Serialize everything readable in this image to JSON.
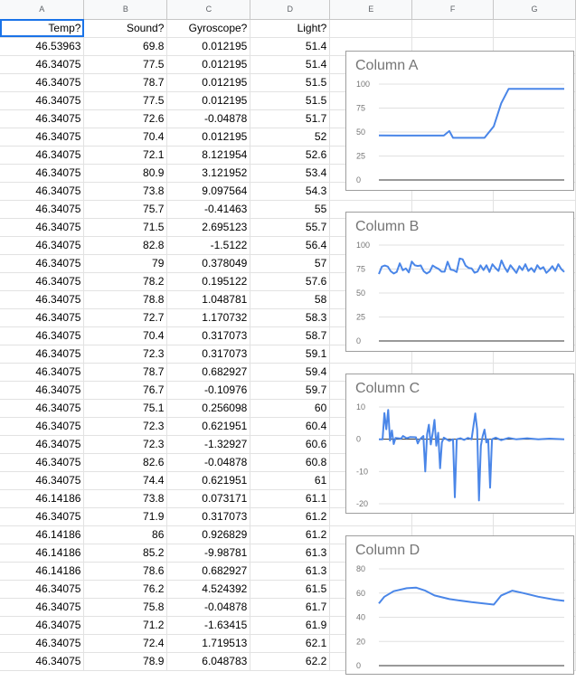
{
  "columns": [
    "A",
    "B",
    "C",
    "D",
    "E",
    "F",
    "G"
  ],
  "header_row": [
    "Temp?",
    "Sound?",
    "Gyroscope?",
    "Light?"
  ],
  "rows": [
    [
      "46.53963",
      "69.8",
      "0.012195",
      "51.4"
    ],
    [
      "46.34075",
      "77.5",
      "0.012195",
      "51.4"
    ],
    [
      "46.34075",
      "78.7",
      "0.012195",
      "51.5"
    ],
    [
      "46.34075",
      "77.5",
      "0.012195",
      "51.5"
    ],
    [
      "46.34075",
      "72.6",
      "-0.04878",
      "51.7"
    ],
    [
      "46.34075",
      "70.4",
      "0.012195",
      "52"
    ],
    [
      "46.34075",
      "72.1",
      "8.121954",
      "52.6"
    ],
    [
      "46.34075",
      "80.9",
      "3.121952",
      "53.4"
    ],
    [
      "46.34075",
      "73.8",
      "9.097564",
      "54.3"
    ],
    [
      "46.34075",
      "75.7",
      "-0.41463",
      "55"
    ],
    [
      "46.34075",
      "71.5",
      "2.695123",
      "55.7"
    ],
    [
      "46.34075",
      "82.8",
      "-1.5122",
      "56.4"
    ],
    [
      "46.34075",
      "79",
      "0.378049",
      "57"
    ],
    [
      "46.34075",
      "78.2",
      "0.195122",
      "57.6"
    ],
    [
      "46.34075",
      "78.8",
      "1.048781",
      "58"
    ],
    [
      "46.34075",
      "72.7",
      "1.170732",
      "58.3"
    ],
    [
      "46.34075",
      "70.4",
      "0.317073",
      "58.7"
    ],
    [
      "46.34075",
      "72.3",
      "0.317073",
      "59.1"
    ],
    [
      "46.34075",
      "78.7",
      "0.682927",
      "59.4"
    ],
    [
      "46.34075",
      "76.7",
      "-0.10976",
      "59.7"
    ],
    [
      "46.34075",
      "75.1",
      "0.256098",
      "60"
    ],
    [
      "46.34075",
      "72.3",
      "0.621951",
      "60.4"
    ],
    [
      "46.34075",
      "72.3",
      "-1.32927",
      "60.6"
    ],
    [
      "46.34075",
      "82.6",
      "-0.04878",
      "60.8"
    ],
    [
      "46.34075",
      "74.4",
      "0.621951",
      "61"
    ],
    [
      "46.14186",
      "73.8",
      "0.073171",
      "61.1"
    ],
    [
      "46.34075",
      "71.9",
      "0.317073",
      "61.2"
    ],
    [
      "46.14186",
      "86",
      "0.926829",
      "61.2"
    ],
    [
      "46.14186",
      "85.2",
      "-9.98781",
      "61.3"
    ],
    [
      "46.14186",
      "78.6",
      "0.682927",
      "61.3"
    ],
    [
      "46.34075",
      "76.2",
      "4.524392",
      "61.5"
    ],
    [
      "46.34075",
      "75.8",
      "-0.04878",
      "61.7"
    ],
    [
      "46.34075",
      "71.2",
      "-1.63415",
      "61.9"
    ],
    [
      "46.34075",
      "72.4",
      "1.719513",
      "62.1"
    ],
    [
      "46.34075",
      "78.9",
      "6.048783",
      "62.2"
    ]
  ],
  "colors": {
    "line": "#4a86e8",
    "header_bg": "#f8f9fa",
    "selection": "#1a73e8"
  },
  "chart_data": [
    {
      "type": "line",
      "title": "Column A",
      "yticks": [
        0,
        25,
        50,
        75,
        100
      ],
      "ylim": [
        0,
        100
      ],
      "points": [
        [
          0,
          46.5
        ],
        [
          10,
          46.3
        ],
        [
          35,
          46.3
        ],
        [
          38,
          51
        ],
        [
          40,
          44
        ],
        [
          52,
          44
        ],
        [
          57,
          44
        ],
        [
          62,
          56
        ],
        [
          66,
          80
        ],
        [
          70,
          95
        ],
        [
          100,
          95
        ]
      ]
    },
    {
      "type": "line",
      "title": "Column B",
      "yticks": [
        0,
        25,
        50,
        75,
        100
      ],
      "ylim": [
        0,
        100
      ],
      "values": [
        69.8,
        77.5,
        78.7,
        77.5,
        72.6,
        70.4,
        72.1,
        80.9,
        73.8,
        75.7,
        71.5,
        82.8,
        79,
        78.2,
        78.8,
        72.7,
        70.4,
        72.3,
        78.7,
        76.7,
        75.1,
        72.3,
        72.3,
        82.6,
        74.4,
        73.8,
        71.9,
        86,
        85.2,
        78.6,
        76.2,
        75.8,
        71.2,
        72.4,
        78.9,
        74,
        79,
        72,
        80,
        76,
        73,
        84,
        77,
        72,
        79,
        75,
        71,
        78,
        74,
        80,
        73,
        76,
        72,
        79,
        75,
        77,
        71,
        74,
        78,
        73,
        80,
        75,
        72
      ]
    },
    {
      "type": "line",
      "title": "Column C",
      "yticks": [
        -20,
        -10,
        0,
        10
      ],
      "ylim": [
        -21,
        11
      ],
      "points": [
        [
          0,
          0
        ],
        [
          2,
          0
        ],
        [
          3,
          8.1
        ],
        [
          4,
          3.1
        ],
        [
          5,
          9.1
        ],
        [
          6,
          -0.4
        ],
        [
          7,
          2.7
        ],
        [
          8,
          -1.5
        ],
        [
          9,
          0.4
        ],
        [
          12,
          0.2
        ],
        [
          13,
          1
        ],
        [
          15,
          0.3
        ],
        [
          17,
          0.7
        ],
        [
          20,
          0.6
        ],
        [
          21,
          -1.3
        ],
        [
          22,
          -0.1
        ],
        [
          24,
          1
        ],
        [
          25,
          -10
        ],
        [
          26,
          1.5
        ],
        [
          27,
          4.5
        ],
        [
          28,
          -1.6
        ],
        [
          29,
          1.7
        ],
        [
          30,
          6
        ],
        [
          31,
          -2
        ],
        [
          32,
          2
        ],
        [
          33,
          -9
        ],
        [
          34,
          -1
        ],
        [
          35,
          0.5
        ],
        [
          38,
          -0.5
        ],
        [
          40,
          0
        ],
        [
          41,
          -18
        ],
        [
          42,
          0
        ],
        [
          44,
          0.3
        ],
        [
          46,
          -0.2
        ],
        [
          48,
          0.4
        ],
        [
          50,
          0
        ],
        [
          52,
          8
        ],
        [
          53,
          3
        ],
        [
          54,
          -19
        ],
        [
          55,
          -2
        ],
        [
          56,
          1
        ],
        [
          57,
          3
        ],
        [
          58,
          -1
        ],
        [
          59,
          0
        ],
        [
          60,
          -15
        ],
        [
          61,
          0
        ],
        [
          63,
          0.5
        ],
        [
          66,
          -0.3
        ],
        [
          70,
          0.4
        ],
        [
          74,
          0
        ],
        [
          80,
          0.3
        ],
        [
          86,
          0
        ],
        [
          92,
          0.2
        ],
        [
          100,
          0
        ]
      ]
    },
    {
      "type": "line",
      "title": "Column D",
      "yticks": [
        0,
        20,
        40,
        60,
        80
      ],
      "ylim": [
        -5,
        85
      ],
      "points": [
        [
          0,
          51.4
        ],
        [
          3,
          57
        ],
        [
          8,
          61.5
        ],
        [
          15,
          64
        ],
        [
          20,
          64.5
        ],
        [
          25,
          62
        ],
        [
          30,
          58
        ],
        [
          38,
          55
        ],
        [
          50,
          52.5
        ],
        [
          62,
          50.5
        ],
        [
          66,
          58
        ],
        [
          72,
          62
        ],
        [
          78,
          60
        ],
        [
          86,
          57
        ],
        [
          95,
          54.5
        ],
        [
          100,
          53.5
        ]
      ]
    }
  ]
}
